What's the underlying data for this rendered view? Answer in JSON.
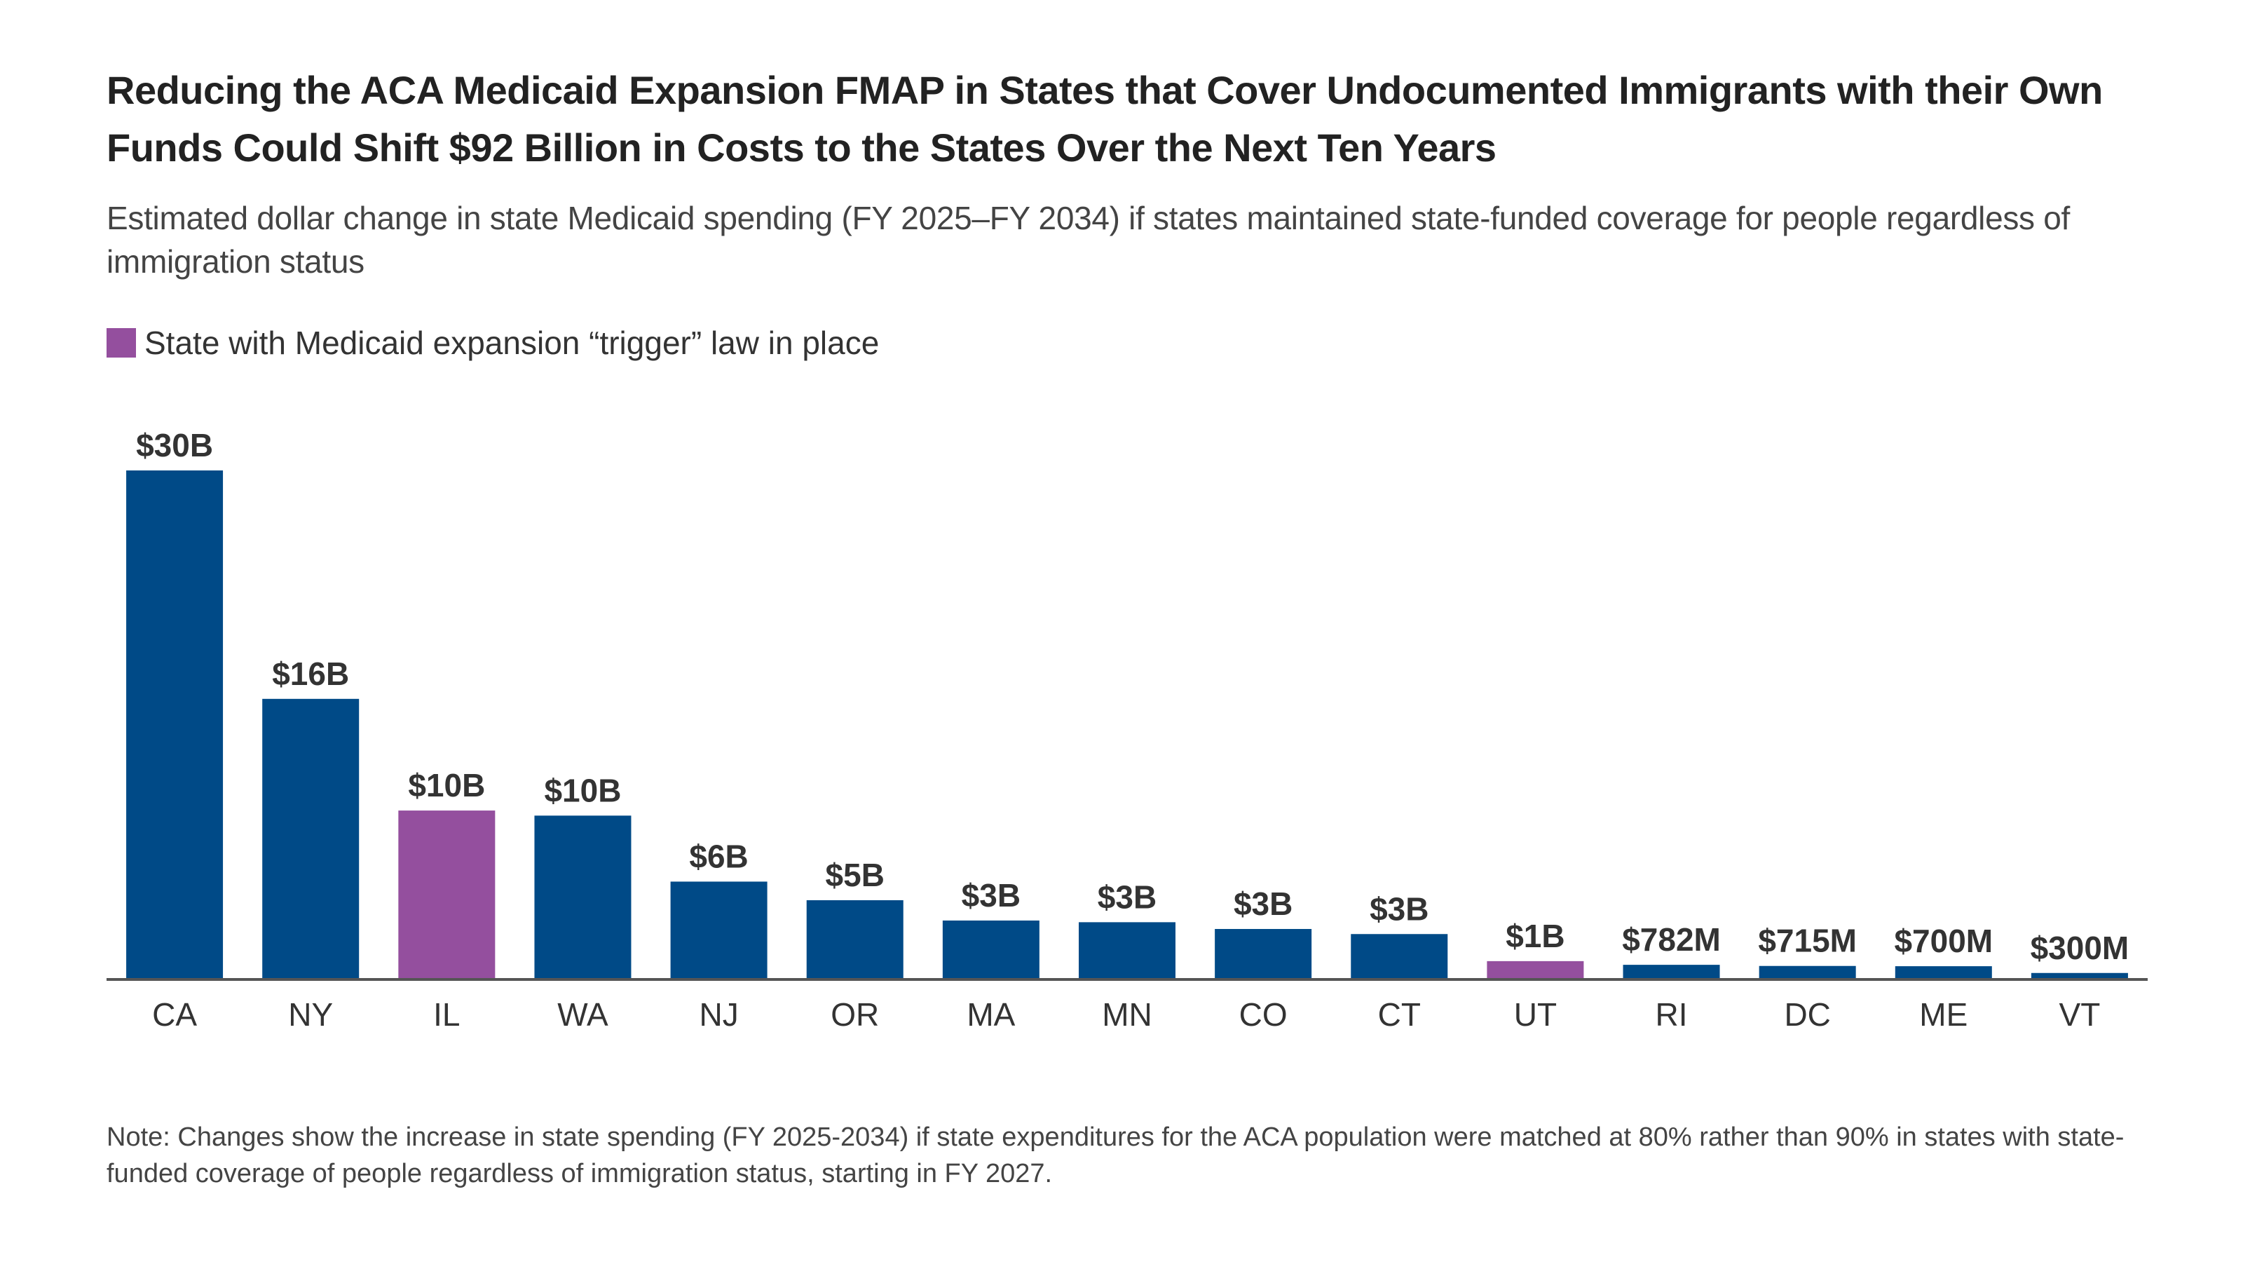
{
  "chart_data": {
    "type": "bar",
    "title": "Reducing the ACA Medicaid Expansion FMAP in States that Cover Undocumented Immigrants with their Own Funds Could Shift $92 Billion in Costs to the States Over the Next Ten Years",
    "subtitle": "Estimated dollar change in state Medicaid spending (FY 2025–FY 2034) if states maintained state-funded coverage for people regardless of immigration status",
    "legend": [
      {
        "label": "State with Medicaid expansion “trigger” law in place",
        "color": "#944f9e"
      }
    ],
    "legend_placement": "top-left",
    "categories": [
      "CA",
      "NY",
      "IL",
      "WA",
      "NJ",
      "OR",
      "MA",
      "MN",
      "CO",
      "CT",
      "UT",
      "RI",
      "DC",
      "ME",
      "VT"
    ],
    "values": [
      30,
      16.5,
      9.9,
      9.6,
      5.7,
      4.6,
      3.4,
      3.3,
      2.9,
      2.6,
      1.0,
      0.782,
      0.715,
      0.7,
      0.3
    ],
    "value_unit": "billions of dollars",
    "data_labels": [
      "$30B",
      "$16B",
      "$10B",
      "$10B",
      "$6B",
      "$5B",
      "$3B",
      "$3B",
      "$3B",
      "$3B",
      "$1B",
      "$782M",
      "$715M",
      "$700M",
      "$300M"
    ],
    "trigger_law": [
      false,
      false,
      true,
      false,
      false,
      false,
      false,
      false,
      false,
      false,
      true,
      false,
      false,
      false,
      false
    ],
    "colors": {
      "default": "#004a87",
      "trigger": "#944f9e",
      "axis": "#555555"
    },
    "ylim": [
      0,
      30
    ],
    "grid": false,
    "xlabel": "",
    "ylabel": "",
    "note": "Note: Changes show the increase in state spending (FY 2025-2034) if state expenditures for the ACA population were matched at 80% rather than 90% in states with state-funded coverage of people regardless of immigration status, starting in FY 2027."
  }
}
